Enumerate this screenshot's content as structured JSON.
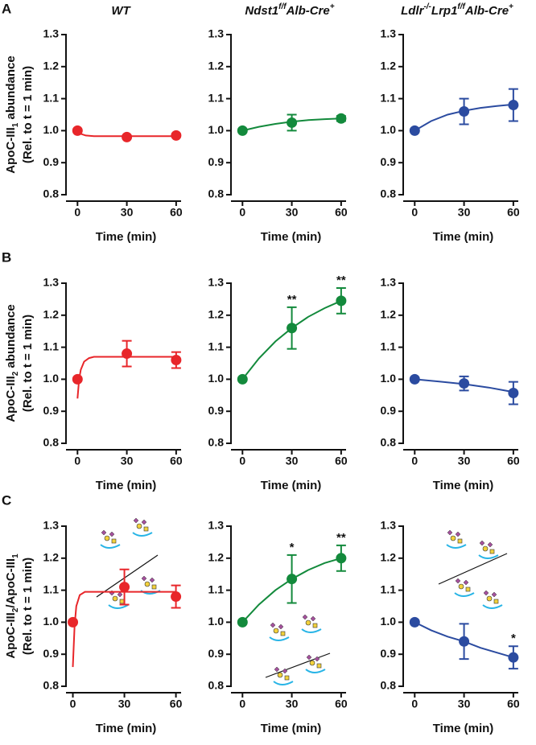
{
  "figure": {
    "columns": [
      [
        {
          "text": "WT",
          "italic": true
        }
      ],
      [
        {
          "text": "Ndst1",
          "italic": true
        },
        {
          "text": "f/f",
          "italic": true,
          "sup": true
        },
        {
          "text": "Alb-Cre",
          "italic": true
        },
        {
          "text": "+",
          "italic": true,
          "sup": true
        }
      ],
      [
        {
          "text": "Ldlr",
          "italic": true
        },
        {
          "text": "-/-",
          "italic": true,
          "sup": true
        },
        {
          "text": "Lrp1",
          "italic": true
        },
        {
          "text": "f/f",
          "italic": true,
          "sup": true
        },
        {
          "text": "Alb-Cre",
          "italic": true
        },
        {
          "text": "+",
          "italic": true,
          "sup": true
        }
      ]
    ],
    "rows": [
      {
        "label": "A",
        "ylabel": [
          [
            {
              "text": "ApoC-III"
            },
            {
              "text": "1",
              "sub": true
            },
            {
              "text": " abundance"
            }
          ],
          [
            {
              "text": "(Rel. to t = 1 min)"
            }
          ]
        ]
      },
      {
        "label": "B",
        "ylabel": [
          [
            {
              "text": "ApoC-III"
            },
            {
              "text": "2",
              "sub": true
            },
            {
              "text": " abundance"
            }
          ],
          [
            {
              "text": "(Rel. to t = 1 min)"
            }
          ]
        ]
      },
      {
        "label": "C",
        "ylabel": [
          [
            {
              "text": "ApoC-III"
            },
            {
              "text": "2",
              "sub": true
            },
            {
              "text": "/ApoC-III"
            },
            {
              "text": "1",
              "sub": true
            }
          ],
          [
            {
              "text": "(Rel. to t = 1 min)"
            }
          ]
        ]
      }
    ]
  },
  "chart_data": [
    {
      "type": "scatter",
      "color": "#e8262a",
      "x": [
        0,
        30,
        60
      ],
      "values": [
        1.0,
        0.98,
        0.985
      ],
      "errors": [
        0,
        0.004,
        0.004
      ],
      "fit": {
        "x": [
          0,
          2,
          5,
          10,
          60
        ],
        "values": [
          1.0,
          0.99,
          0.985,
          0.983,
          0.983
        ]
      },
      "xlabel": "Time (min)",
      "xlim": [
        -7,
        63
      ],
      "xticks": [
        0,
        30,
        60
      ],
      "ylim": [
        0.8,
        1.3
      ],
      "yticks": [
        0.8,
        0.9,
        {
          "value": 1,
          "label": "1.0"
        },
        1.1,
        1.2,
        1.3
      ],
      "annotations": []
    },
    {
      "type": "scatter",
      "color": "#138a3c",
      "x": [
        0,
        30,
        60
      ],
      "values": [
        1.0,
        1.025,
        1.038
      ],
      "errors": [
        0,
        0.025,
        0.008
      ],
      "fit": {
        "x": [
          0,
          10,
          20,
          30,
          40,
          50,
          60
        ],
        "values": [
          1.0,
          1.012,
          1.021,
          1.028,
          1.033,
          1.036,
          1.038
        ]
      },
      "xlabel": "Time (min)",
      "xlim": [
        -7,
        63
      ],
      "xticks": [
        0,
        30,
        60
      ],
      "ylim": [
        0.8,
        1.3
      ],
      "yticks": [
        0.8,
        0.9,
        {
          "value": 1,
          "label": "1.0"
        },
        1.1,
        1.2,
        1.3
      ],
      "annotations": []
    },
    {
      "type": "scatter",
      "color": "#2b4ba0",
      "x": [
        0,
        30,
        60
      ],
      "values": [
        1.0,
        1.06,
        1.08
      ],
      "errors": [
        0,
        0.04,
        0.05
      ],
      "fit": {
        "x": [
          0,
          10,
          20,
          30,
          40,
          50,
          60
        ],
        "values": [
          1.0,
          1.03,
          1.05,
          1.062,
          1.071,
          1.077,
          1.082
        ]
      },
      "xlabel": "Time (min)",
      "xlim": [
        -7,
        63
      ],
      "xticks": [
        0,
        30,
        60
      ],
      "ylim": [
        0.8,
        1.3
      ],
      "yticks": [
        0.8,
        0.9,
        {
          "value": 1,
          "label": "1.0"
        },
        1.1,
        1.2,
        1.3
      ],
      "annotations": []
    },
    {
      "type": "scatter",
      "color": "#e8262a",
      "x": [
        0,
        30,
        60
      ],
      "values": [
        1.0,
        1.08,
        1.06
      ],
      "errors": [
        0,
        0.04,
        0.025
      ],
      "fit": {
        "x": [
          0,
          1,
          2,
          4,
          7,
          10,
          60
        ],
        "values": [
          0.94,
          1.0,
          1.03,
          1.055,
          1.066,
          1.07,
          1.07
        ]
      },
      "xlabel": "Time (min)",
      "xlim": [
        -7,
        63
      ],
      "xticks": [
        0,
        30,
        60
      ],
      "ylim": [
        0.8,
        1.3
      ],
      "yticks": [
        0.8,
        0.9,
        {
          "value": 1,
          "label": "1.0"
        },
        1.1,
        1.2,
        1.3
      ],
      "annotations": []
    },
    {
      "type": "scatter",
      "color": "#138a3c",
      "x": [
        0,
        30,
        60
      ],
      "values": [
        1.0,
        1.16,
        1.245
      ],
      "errors": [
        0,
        0.065,
        0.04
      ],
      "fit": {
        "x": [
          0,
          10,
          20,
          30,
          40,
          50,
          60
        ],
        "values": [
          1.0,
          1.065,
          1.118,
          1.16,
          1.195,
          1.222,
          1.245
        ]
      },
      "xlabel": "Time (min)",
      "xlim": [
        -7,
        63
      ],
      "xticks": [
        0,
        30,
        60
      ],
      "ylim": [
        0.8,
        1.3
      ],
      "yticks": [
        0.8,
        0.9,
        {
          "value": 1,
          "label": "1.0"
        },
        1.1,
        1.2,
        1.3
      ],
      "annotations": [
        {
          "x": 30,
          "text": "**"
        },
        {
          "x": 60,
          "text": "**"
        }
      ]
    },
    {
      "type": "scatter",
      "color": "#2b4ba0",
      "x": [
        0,
        30,
        60
      ],
      "values": [
        1.0,
        0.987,
        0.957
      ],
      "errors": [
        0,
        0.022,
        0.035
      ],
      "fit": {
        "x": [
          0,
          15,
          30,
          45,
          60
        ],
        "values": [
          1.0,
          0.993,
          0.985,
          0.974,
          0.96
        ]
      },
      "xlabel": "Time (min)",
      "xlim": [
        -7,
        63
      ],
      "xticks": [
        0,
        30,
        60
      ],
      "ylim": [
        0.8,
        1.3
      ],
      "yticks": [
        0.8,
        0.9,
        {
          "value": 1,
          "label": "1.0"
        },
        1.1,
        1.2,
        1.3
      ],
      "annotations": []
    },
    {
      "type": "scatter",
      "color": "#e8262a",
      "x": [
        0,
        30,
        60
      ],
      "values": [
        1.0,
        1.11,
        1.08
      ],
      "errors": [
        0,
        0.055,
        0.035
      ],
      "fit": {
        "x": [
          0,
          1,
          2,
          4,
          7,
          60
        ],
        "values": [
          0.86,
          0.99,
          1.05,
          1.085,
          1.095,
          1.095
        ]
      },
      "xlabel": "Time (min)",
      "xlim": [
        -4,
        63
      ],
      "xticks": [
        0,
        30,
        60
      ],
      "ylim": [
        0.8,
        1.3
      ],
      "yticks": [
        0.8,
        0.9,
        {
          "value": 1,
          "label": "1.0"
        },
        1.1,
        1.2,
        1.3
      ],
      "annotations": []
    },
    {
      "type": "scatter",
      "color": "#138a3c",
      "x": [
        0,
        30,
        60
      ],
      "values": [
        1.0,
        1.135,
        1.2
      ],
      "errors": [
        0,
        0.075,
        0.04
      ],
      "fit": {
        "x": [
          0,
          10,
          20,
          30,
          40,
          50,
          60
        ],
        "values": [
          1.0,
          1.055,
          1.1,
          1.135,
          1.163,
          1.185,
          1.2
        ]
      },
      "xlabel": "Time (min)",
      "xlim": [
        -7,
        63
      ],
      "xticks": [
        0,
        30,
        60
      ],
      "ylim": [
        0.8,
        1.3
      ],
      "yticks": [
        0.8,
        0.9,
        {
          "value": 1,
          "label": "1.0"
        },
        1.1,
        1.2,
        1.3
      ],
      "annotations": [
        {
          "x": 30,
          "text": "*"
        },
        {
          "x": 60,
          "text": "**"
        }
      ]
    },
    {
      "type": "scatter",
      "color": "#2b4ba0",
      "x": [
        0,
        30,
        60
      ],
      "values": [
        1.0,
        0.94,
        0.89
      ],
      "errors": [
        0,
        0.055,
        0.035
      ],
      "fit": {
        "x": [
          0,
          10,
          20,
          30,
          40,
          50,
          60
        ],
        "values": [
          1.0,
          0.975,
          0.955,
          0.94,
          0.92,
          0.905,
          0.89
        ]
      },
      "xlabel": "Time (min)",
      "xlim": [
        -7,
        63
      ],
      "xticks": [
        0,
        30,
        60
      ],
      "ylim": [
        0.8,
        1.3
      ],
      "yticks": [
        0.8,
        0.9,
        {
          "value": 1,
          "label": "1.0"
        },
        1.1,
        1.2,
        1.3
      ],
      "annotations": [
        {
          "x": 60,
          "text": "*"
        }
      ]
    }
  ]
}
